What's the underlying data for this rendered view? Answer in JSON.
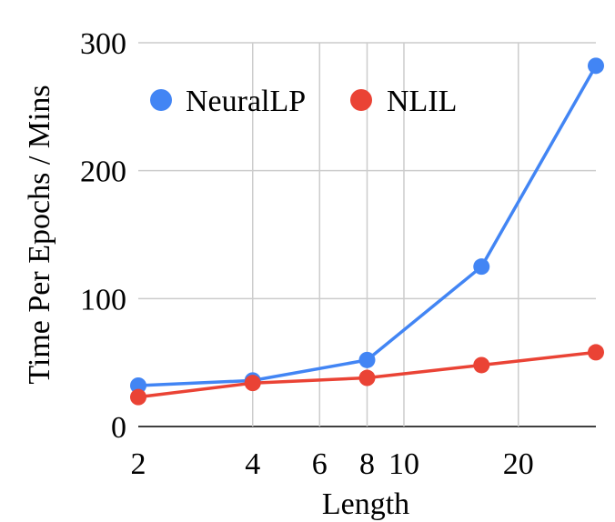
{
  "chart_data": {
    "type": "line",
    "xscale": "log",
    "xlabel": "Length",
    "ylabel": "Time Per Epochs / Mins",
    "ylim": [
      0,
      300
    ],
    "xlim": [
      2,
      32
    ],
    "x_ticks": [
      2,
      4,
      6,
      8,
      10,
      20
    ],
    "y_ticks": [
      0,
      100,
      200,
      300
    ],
    "grid": true,
    "legend_position": "top-left",
    "x": [
      2,
      4,
      8,
      16,
      32
    ],
    "series": [
      {
        "name": "NeuralLP",
        "color": "#4285f4",
        "values": [
          32,
          36,
          52,
          125,
          282
        ]
      },
      {
        "name": "NLIL",
        "color": "#ea4335",
        "values": [
          23,
          34,
          38,
          48,
          58
        ]
      }
    ]
  }
}
